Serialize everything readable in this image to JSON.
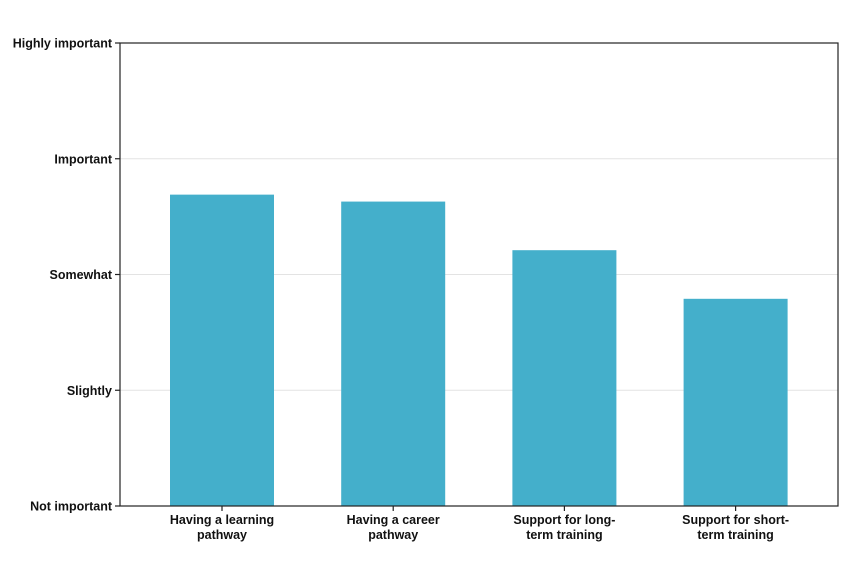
{
  "chart_data": {
    "type": "bar",
    "categories": [
      [
        "Having a learning",
        "pathway"
      ],
      [
        "Having a career",
        "pathway"
      ],
      [
        "Support for long-",
        "term training"
      ],
      [
        "Support for short-",
        "term training"
      ]
    ],
    "values": [
      2.69,
      2.63,
      2.21,
      1.79
    ],
    "y_tick_labels": [
      "Not important",
      "Slightly",
      "Somewhat",
      "Important",
      "Highly important"
    ],
    "ylim": [
      0,
      4
    ],
    "grid": true,
    "bar_color": "#44afcb",
    "gridline_color": "#e3e3e3",
    "axis_color": "#222222"
  }
}
